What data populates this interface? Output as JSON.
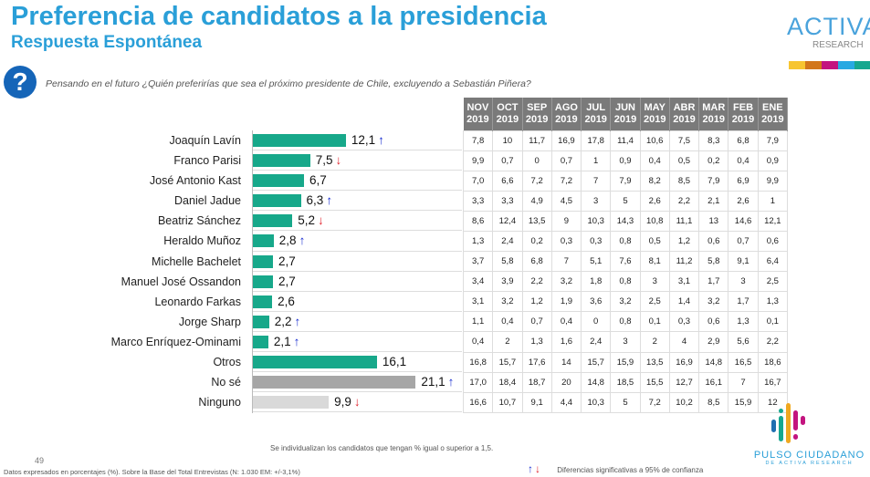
{
  "header": {
    "title": "Preferencia de candidatos a la presidencia",
    "subtitle": "Respuesta Espontánea"
  },
  "logo": {
    "word": "ACTIVA",
    "sub": "RESEARCH",
    "stripe_colors": [
      "#f7c531",
      "#d2761b",
      "#c3147f",
      "#28a9e2",
      "#17a78f"
    ]
  },
  "question": {
    "icon": "question-icon",
    "glyph": "?",
    "text": "Pensando en el futuro ¿Quién preferirías que sea el próximo presidente de Chile, excluyendo a Sebastián Piñera?"
  },
  "colors": {
    "candidate": "#17a88a",
    "no_se": "#a6a6a6",
    "ninguno": "#d9d9d9",
    "up": "#1a2fd0",
    "down": "#e0202a"
  },
  "chart_data": {
    "type": "bar",
    "orientation": "horizontal",
    "categories": [
      "Joaquín Lavín",
      "Franco Parisi",
      "José Antonio Kast",
      "Daniel Jadue",
      "Beatriz Sánchez",
      "Heraldo Muñoz",
      "Michelle Bachelet",
      "Manuel José  Ossandon",
      "Leonardo Farkas",
      "Jorge Sharp",
      "Marco Enríquez-Ominami",
      "Otros",
      "No sé",
      "Ninguno"
    ],
    "values": [
      12.1,
      7.5,
      6.7,
      6.3,
      5.2,
      2.8,
      2.7,
      2.7,
      2.6,
      2.2,
      2.1,
      16.1,
      21.1,
      9.9
    ],
    "labels": [
      "12,1",
      "7,5",
      "6,7",
      "6,3",
      "5,2",
      "2,8",
      "2,7",
      "2,7",
      "2,6",
      "2,2",
      "2,1",
      "16,1",
      "21,1",
      "9,9"
    ],
    "significance": [
      "up",
      "down",
      "",
      "up",
      "down",
      "up",
      "",
      "",
      "",
      "up",
      "up",
      "",
      "up",
      "down"
    ]
  },
  "table": {
    "headers": [
      [
        "NOV",
        "2019"
      ],
      [
        "OCT",
        "2019"
      ],
      [
        "SEP",
        "2019"
      ],
      [
        "AGO",
        "2019"
      ],
      [
        "JUL",
        "2019"
      ],
      [
        "JUN",
        "2019"
      ],
      [
        "MAY",
        "2019"
      ],
      [
        "ABR",
        "2019"
      ],
      [
        "MAR",
        "2019"
      ],
      [
        "FEB",
        "2019"
      ],
      [
        "ENE",
        "2019"
      ]
    ],
    "rows": [
      [
        "7,8",
        "10",
        "11,7",
        "16,9",
        "17,8",
        "11,4",
        "10,6",
        "7,5",
        "8,3",
        "6,8",
        "7,9"
      ],
      [
        "9,9",
        "0,7",
        "0",
        "0,7",
        "1",
        "0,9",
        "0,4",
        "0,5",
        "0,2",
        "0,4",
        "0,9"
      ],
      [
        "7,0",
        "6,6",
        "7,2",
        "7,2",
        "7",
        "7,9",
        "8,2",
        "8,5",
        "7,9",
        "6,9",
        "9,9"
      ],
      [
        "3,3",
        "3,3",
        "4,9",
        "4,5",
        "3",
        "5",
        "2,6",
        "2,2",
        "2,1",
        "2,6",
        "1"
      ],
      [
        "8,6",
        "12,4",
        "13,5",
        "9",
        "10,3",
        "14,3",
        "10,8",
        "11,1",
        "13",
        "14,6",
        "12,1"
      ],
      [
        "1,3",
        "2,4",
        "0,2",
        "0,3",
        "0,3",
        "0,8",
        "0,5",
        "1,2",
        "0,6",
        "0,7",
        "0,6"
      ],
      [
        "3,7",
        "5,8",
        "6,8",
        "7",
        "5,1",
        "7,6",
        "8,1",
        "11,2",
        "5,8",
        "9,1",
        "6,4"
      ],
      [
        "3,4",
        "3,9",
        "2,2",
        "3,2",
        "1,8",
        "0,8",
        "3",
        "3,1",
        "1,7",
        "3",
        "2,5"
      ],
      [
        "3,1",
        "3,2",
        "1,2",
        "1,9",
        "3,6",
        "3,2",
        "2,5",
        "1,4",
        "3,2",
        "1,7",
        "1,3"
      ],
      [
        "1,1",
        "0,4",
        "0,7",
        "0,4",
        "0",
        "0,8",
        "0,1",
        "0,3",
        "0,6",
        "1,3",
        "0,1"
      ],
      [
        "0,4",
        "2",
        "1,3",
        "1,6",
        "2,4",
        "3",
        "2",
        "4",
        "2,9",
        "5,6",
        "2,2"
      ],
      [
        "16,8",
        "15,7",
        "17,6",
        "14",
        "15,7",
        "15,9",
        "13,5",
        "16,9",
        "14,8",
        "16,5",
        "18,6"
      ],
      [
        "17,0",
        "18,4",
        "18,7",
        "20",
        "14,8",
        "18,5",
        "15,5",
        "12,7",
        "16,1",
        "7",
        "16,7"
      ],
      [
        "16,6",
        "10,7",
        "9,1",
        "4,4",
        "10,3",
        "5",
        "7,2",
        "10,2",
        "8,5",
        "15,9",
        "12"
      ]
    ]
  },
  "footer": {
    "note": "Se individualizan los candidatos que tengan % igual o superior a 1,5.",
    "page": "49",
    "base": "Datos expresados en porcentajes (%). Sobre la Base del Total Entrevistas (N: 1.030 EM: +/-3,1%)",
    "legend_up": "↑",
    "legend_down": "↓",
    "legend_text": "Diferencias  significativas a 95% de confianza",
    "brand": "PULSO CIUDADANO",
    "brand_sub": "DE ACTIVA RESEARCH"
  }
}
